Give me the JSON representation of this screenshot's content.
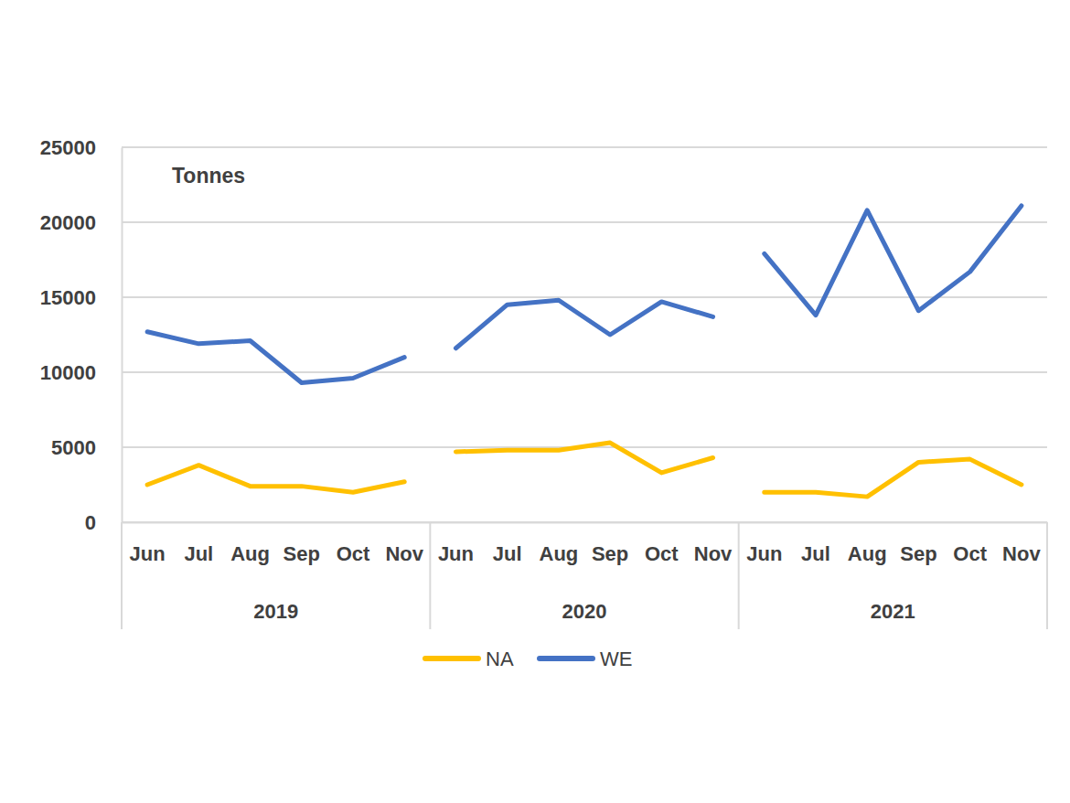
{
  "chart_data": {
    "type": "line",
    "y_label": "Tonnes",
    "categories": [
      "Jun",
      "Jul",
      "Aug",
      "Sep",
      "Oct",
      "Nov",
      "Jun",
      "Jul",
      "Aug",
      "Sep",
      "Oct",
      "Nov",
      "Jun",
      "Jul",
      "Aug",
      "Sep",
      "Oct",
      "Nov"
    ],
    "groups": [
      "2019",
      "2020",
      "2021"
    ],
    "series": [
      {
        "name": "NA",
        "color": "#ffc000",
        "values": [
          2500,
          3800,
          2400,
          2400,
          2000,
          2700,
          4700,
          4800,
          4800,
          5300,
          3300,
          4300,
          2000,
          2000,
          1700,
          4000,
          4200,
          2500
        ]
      },
      {
        "name": "WE",
        "color": "#4472c4",
        "values": [
          12700,
          11900,
          12100,
          9300,
          9600,
          11000,
          11600,
          14500,
          14800,
          12500,
          14700,
          13700,
          17900,
          13800,
          20800,
          14100,
          16700,
          21100
        ]
      }
    ],
    "ylim": [
      0,
      25000
    ],
    "yticks": [
      0,
      5000,
      10000,
      15000,
      20000,
      25000
    ],
    "grid": true,
    "legend": "bottom"
  }
}
